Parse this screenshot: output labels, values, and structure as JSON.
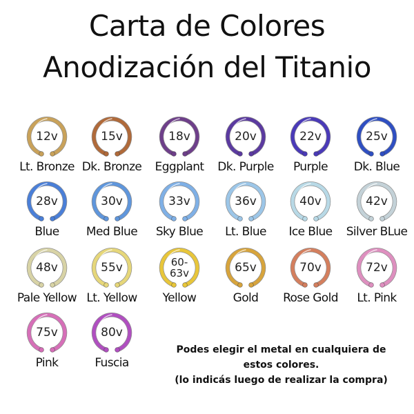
{
  "title": {
    "line1": "Carta de Colores",
    "line2": "Anodización del Titanio"
  },
  "colors": [
    {
      "voltage": "12v",
      "name": "Lt. Bronze",
      "color": "#c9a25a"
    },
    {
      "voltage": "15v",
      "name": "Dk. Bronze",
      "color": "#b06a3a"
    },
    {
      "voltage": "18v",
      "name": "Eggplant",
      "color": "#6e3f8a"
    },
    {
      "voltage": "20v",
      "name": "Dk. Purple",
      "color": "#5b3aa0"
    },
    {
      "voltage": "22v",
      "name": "Purple",
      "color": "#4a3ab8"
    },
    {
      "voltage": "25v",
      "name": "Dk. Blue",
      "color": "#2f4fc2"
    },
    {
      "voltage": "28v",
      "name": "Blue",
      "color": "#4a7fd8"
    },
    {
      "voltage": "30v",
      "name": "Med Blue",
      "color": "#5f96dc"
    },
    {
      "voltage": "33v",
      "name": "Sky Blue",
      "color": "#7fb0e6"
    },
    {
      "voltage": "36v",
      "name": "Lt. Blue",
      "color": "#9cc6e8"
    },
    {
      "voltage": "40v",
      "name": "Ice Blue",
      "color": "#b8d9e6"
    },
    {
      "voltage": "42v",
      "name": "Silver BLue",
      "color": "#c4d2d8"
    },
    {
      "voltage": "48v",
      "name": "Pale Yellow",
      "color": "#d8d3a6"
    },
    {
      "voltage": "55v",
      "name": "Lt. Yellow",
      "color": "#e6d77a"
    },
    {
      "voltage": "60-\n63v",
      "name": "Yellow",
      "color": "#e8c63a"
    },
    {
      "voltage": "65v",
      "name": "Gold",
      "color": "#d7a43c"
    },
    {
      "voltage": "70v",
      "name": "Rose Gold",
      "color": "#d47f5e"
    },
    {
      "voltage": "72v",
      "name": "Lt. Pink",
      "color": "#de8fbf"
    },
    {
      "voltage": "75v",
      "name": "Pink",
      "color": "#d66fb8"
    },
    {
      "voltage": "80v",
      "name": "Fuscia",
      "color": "#b04fc0"
    }
  ],
  "note": {
    "line1": "Podes elegir el metal en cualquiera de",
    "line2": "estos colores.",
    "line3": "(lo indicás luego de realizar la compra)"
  }
}
